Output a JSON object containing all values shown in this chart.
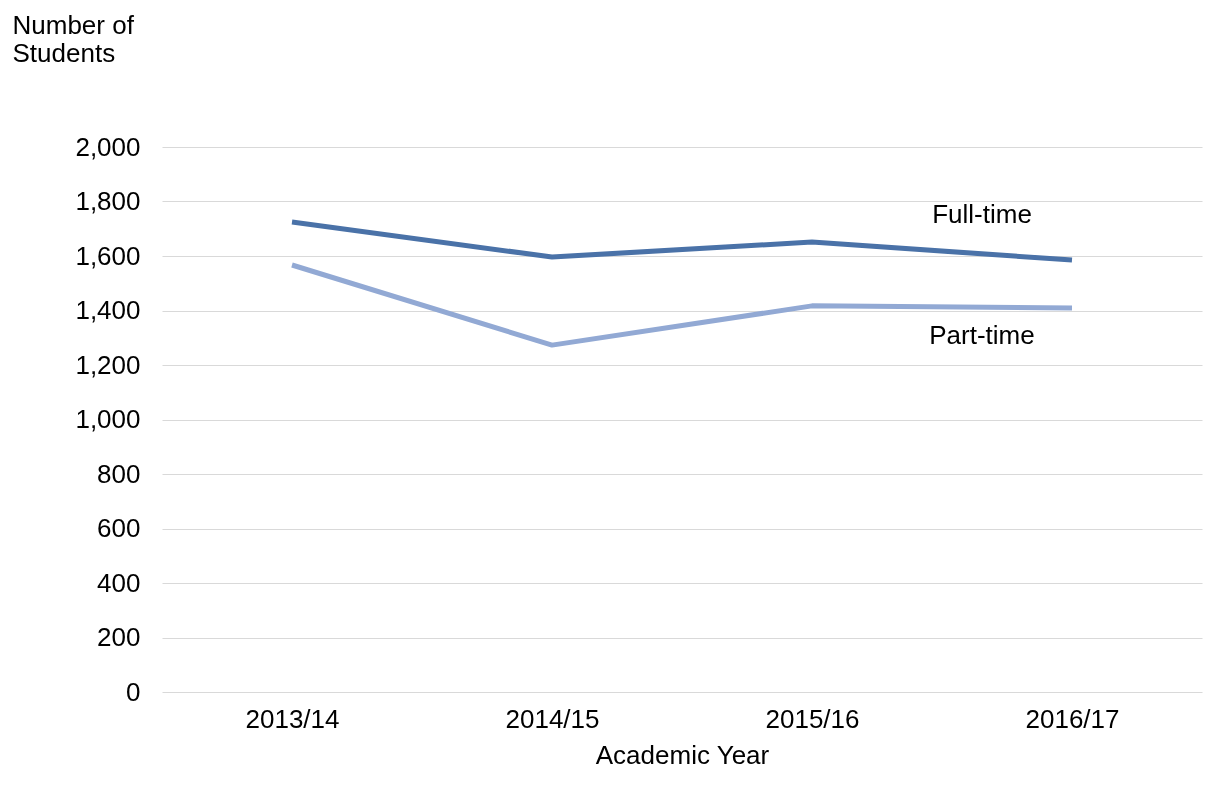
{
  "chart_data": {
    "type": "line",
    "ylabel": "Number of Students",
    "xlabel": "Academic Year",
    "categories": [
      "2013/14",
      "2014/15",
      "2015/16",
      "2016/17"
    ],
    "series": [
      {
        "name": "Full-time",
        "color": "#4a72a8",
        "values": [
          1725,
          1596,
          1651,
          1585
        ]
      },
      {
        "name": "Part-time",
        "color": "#92a9d4",
        "values": [
          1567,
          1273,
          1417,
          1409
        ]
      }
    ],
    "ylim": [
      0,
      2000
    ],
    "yticks": [
      0,
      200,
      400,
      600,
      800,
      {
        "value": 1000,
        "label": "1,000"
      },
      {
        "value": 1200,
        "label": "1,200"
      },
      {
        "value": 1400,
        "label": "1,400"
      },
      {
        "value": 1600,
        "label": "1,600"
      },
      {
        "value": 1800,
        "label": "1,800"
      },
      {
        "value": 2000,
        "label": "2,000"
      }
    ],
    "grid": "y",
    "legend": false,
    "marker": "none",
    "line_style": "solid"
  }
}
